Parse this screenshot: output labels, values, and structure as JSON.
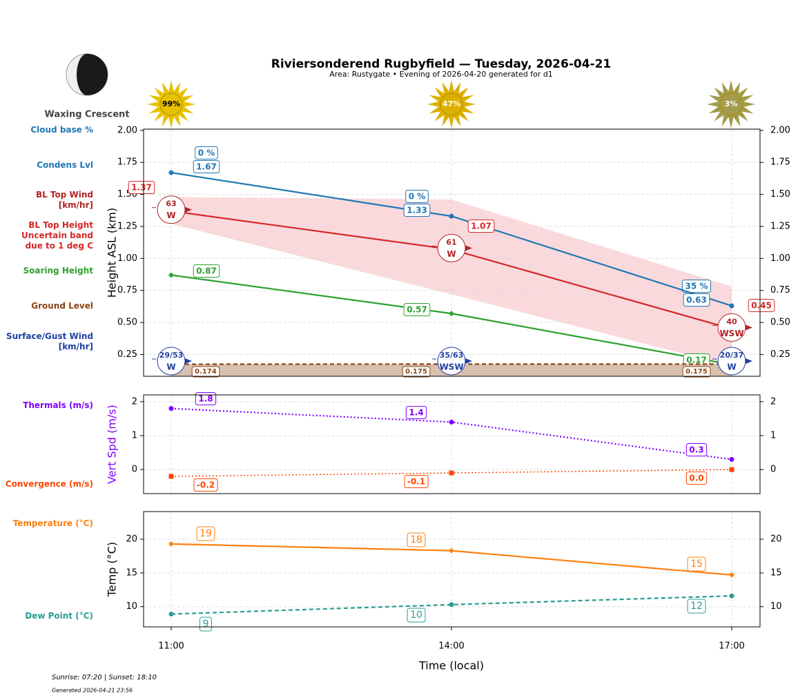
{
  "header": {
    "title": "Riviersonderend Rugbyfield — Tuesday, 2026-04-21",
    "subtitle": "Area: Rustygate • Evening of 2026-04-20 generated for d1"
  },
  "moon": {
    "phase": "Waxing Crescent"
  },
  "sunshine": {
    "values": [
      99,
      47,
      3
    ],
    "value_labels": [
      "99%",
      "47%",
      "3%"
    ],
    "colors": [
      "#e6c200",
      "#dcb000",
      "#a39c4a"
    ]
  },
  "chart_data": [
    {
      "type": "line",
      "ylabel": "Height ASL (km)",
      "ylim": [
        0.08,
        2.01
      ],
      "yticks": [
        0.25,
        {
          "value": 0.5,
          "label": "0.50"
        },
        0.75,
        {
          "value": 1,
          "label": "1.00"
        },
        1.25,
        {
          "value": 1.5,
          "label": "1.50"
        },
        1.75,
        {
          "value": 2,
          "label": "2.00"
        }
      ],
      "grid": true,
      "series": [
        {
          "name": "Cloud base %",
          "color": "#1f77b4",
          "values": [
            0,
            0,
            35
          ],
          "value_labels": [
            "0 %",
            "0 %",
            "35 %"
          ],
          "linestyle": "none",
          "marker": "none"
        },
        {
          "name": "Condens Lvl",
          "color": "#1f77b4",
          "values": [
            1.67,
            1.33,
            0.63
          ],
          "linestyle": "solid",
          "marker": "circle"
        },
        {
          "name": "BL Top Height",
          "color": "#d62728",
          "values": [
            1.37,
            1.07,
            0.45
          ],
          "linestyle": "solid",
          "marker": "none"
        },
        {
          "name": "Soaring Height",
          "color": "#2ca02c",
          "values": [
            0.87,
            0.57,
            0.17
          ],
          "linestyle": "solid",
          "marker": "diamond"
        },
        {
          "name": "Ground Level",
          "color": "#8b4513",
          "values": [
            0.174,
            0.175,
            0.175
          ],
          "linestyle": "dashed",
          "marker": "none",
          "fill": "#d9bfae"
        }
      ],
      "band": {
        "name": "Uncertain band\ndue to 1 deg C",
        "color": "#f7c9cd",
        "upper": [
          1.48,
          1.46,
          0.78
        ],
        "lower": [
          1.27,
          0.72,
          0.16
        ]
      },
      "bl_wind": {
        "name": "BL Top Wind\n[km/hr]",
        "color": "#b22222",
        "speeds": [
          63,
          61,
          40
        ],
        "directions": [
          "W",
          "W",
          "WSW"
        ]
      },
      "surface_wind": {
        "name": "Surface/Gust Wind\n[km/hr]",
        "color": "#2040a0",
        "speeds": [
          29,
          35,
          20
        ],
        "gusts": [
          53,
          63,
          37
        ],
        "value_labels": [
          "29/53",
          "35/63",
          "20/37"
        ],
        "directions": [
          "W",
          "WSW",
          "W"
        ]
      }
    },
    {
      "type": "line",
      "ylabel": "Vert Spd (m/s)",
      "ylabel_color": "#8000ff",
      "ylim": [
        -0.71,
        2.2
      ],
      "yticks": [
        0,
        1,
        2
      ],
      "grid": true,
      "series": [
        {
          "name": "Thermals (m/s)",
          "color": "#8000ff",
          "values": [
            1.8,
            1.4,
            0.3
          ],
          "linestyle": "dotted",
          "marker": "circle"
        },
        {
          "name": "Convergence (m/s)",
          "color": "#ff4500",
          "values": [
            -0.2,
            -0.1,
            0
          ],
          "value_labels": [
            "-0.2",
            "-0.1",
            "0.0"
          ],
          "linestyle": "dotted",
          "marker": "square"
        }
      ]
    },
    {
      "type": "line",
      "ylabel": "Temp (°C)",
      "xlabel": "Time (local)",
      "categories": [
        "11:00",
        "14:00",
        "17:00"
      ],
      "ylim": [
        7.0,
        24.1
      ],
      "yticks": [
        10,
        15,
        20
      ],
      "grid": true,
      "series": [
        {
          "name": "Temperature (°C)",
          "color": "#ff7f0e",
          "values": [
            19.3,
            18.3,
            14.7
          ],
          "value_labels": [
            "19",
            "18",
            "15"
          ],
          "linestyle": "solid",
          "marker": "diamond"
        },
        {
          "name": "Dew Point (°C)",
          "color": "#2a9d8f",
          "values": [
            8.9,
            10.3,
            11.6
          ],
          "value_labels": [
            "9",
            "10",
            "12"
          ],
          "linestyle": "dashed",
          "marker": "circle"
        }
      ]
    }
  ],
  "footer": {
    "sun_times": "Sunrise: 07:20 | Sunset: 18:10",
    "generated": "Generated 2026-04-21 23:56"
  }
}
